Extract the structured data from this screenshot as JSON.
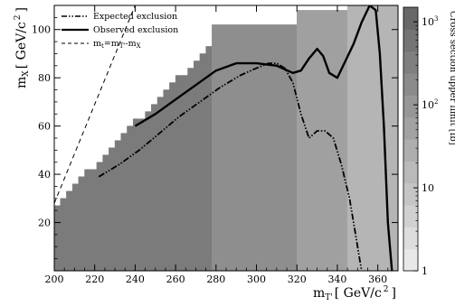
{
  "chart_data": {
    "type": "heatmap",
    "title": "",
    "xlabel": "m",
    "xlabel_sub": "T'",
    "xlabel_unit": "[ GeV/c",
    "xlabel_sup": "2",
    "xlabel_close": "]",
    "ylabel": "m",
    "ylabel_sub": "X",
    "ylabel_unit": "[ GeV/c",
    "ylabel_sup": "2",
    "ylabel_close": "]",
    "xlim": [
      200,
      370
    ],
    "ylim": [
      0,
      110
    ],
    "xticks": [
      200,
      220,
      240,
      260,
      280,
      300,
      320,
      340,
      360
    ],
    "yticks": [
      20,
      40,
      60,
      80,
      100
    ],
    "colorbar": {
      "label": "Cross section upper limit [fb]",
      "scale": "log",
      "range": [
        1,
        1500
      ],
      "ticks": [
        {
          "value": 1,
          "label": "1"
        },
        {
          "value": 10,
          "label": "10"
        },
        {
          "value": 100,
          "label": "10",
          "sup": "2"
        },
        {
          "value": 1000,
          "label": "10",
          "sup": "3"
        }
      ]
    },
    "legend": {
      "placement": "top-left",
      "entries": [
        {
          "label": "Expected exclusion",
          "style": "dash-dot"
        },
        {
          "label": "Observed exclusion",
          "style": "solid"
        },
        {
          "label": "m",
          "sub": "t",
          "rest": "=m",
          "sub2": "T'",
          "rest2": "-m",
          "sub3": "X",
          "style": "dashed"
        }
      ]
    },
    "heatmap_regions": [
      {
        "cell": "x-band-0",
        "x": [
          200,
          278
        ],
        "y_upper_start": 29,
        "y_upper_end": 97,
        "value": 400
      },
      {
        "cell": "x-band-1",
        "x": [
          278,
          320
        ],
        "y_upper": 102,
        "value": 150
      },
      {
        "cell": "x-band-2",
        "x": [
          320,
          345
        ],
        "y_upper": 108,
        "value": 60
      },
      {
        "cell": "x-band-3",
        "x": [
          345,
          370
        ],
        "y_upper": 110,
        "value": 20
      }
    ],
    "series": [
      {
        "name": "Observed exclusion",
        "x": [
          240,
          250,
          260,
          270,
          280,
          290,
          300,
          310,
          318,
          322,
          326,
          330,
          333,
          336,
          340,
          344,
          348,
          352,
          356,
          359,
          361,
          363,
          365,
          367
        ],
        "y": [
          60,
          65,
          71,
          77,
          83,
          86,
          86,
          85,
          82,
          83,
          88,
          92,
          89,
          82,
          80,
          87,
          94,
          103,
          110,
          108,
          90,
          60,
          20,
          0
        ]
      },
      {
        "name": "Expected exclusion",
        "x": [
          222,
          232,
          242,
          252,
          262,
          272,
          282,
          292,
          300,
          306,
          310,
          314,
          318,
          322,
          326,
          330,
          334,
          338,
          342,
          346,
          349,
          351,
          352
        ],
        "y": [
          39,
          44,
          50,
          57,
          64,
          70,
          76,
          81,
          84,
          86,
          86,
          84,
          78,
          65,
          55,
          58,
          58,
          55,
          44,
          30,
          15,
          5,
          0
        ]
      },
      {
        "name": "m_t=m_T'-m_X",
        "x": [
          200,
          240
        ],
        "y": [
          28,
          110
        ]
      }
    ]
  }
}
